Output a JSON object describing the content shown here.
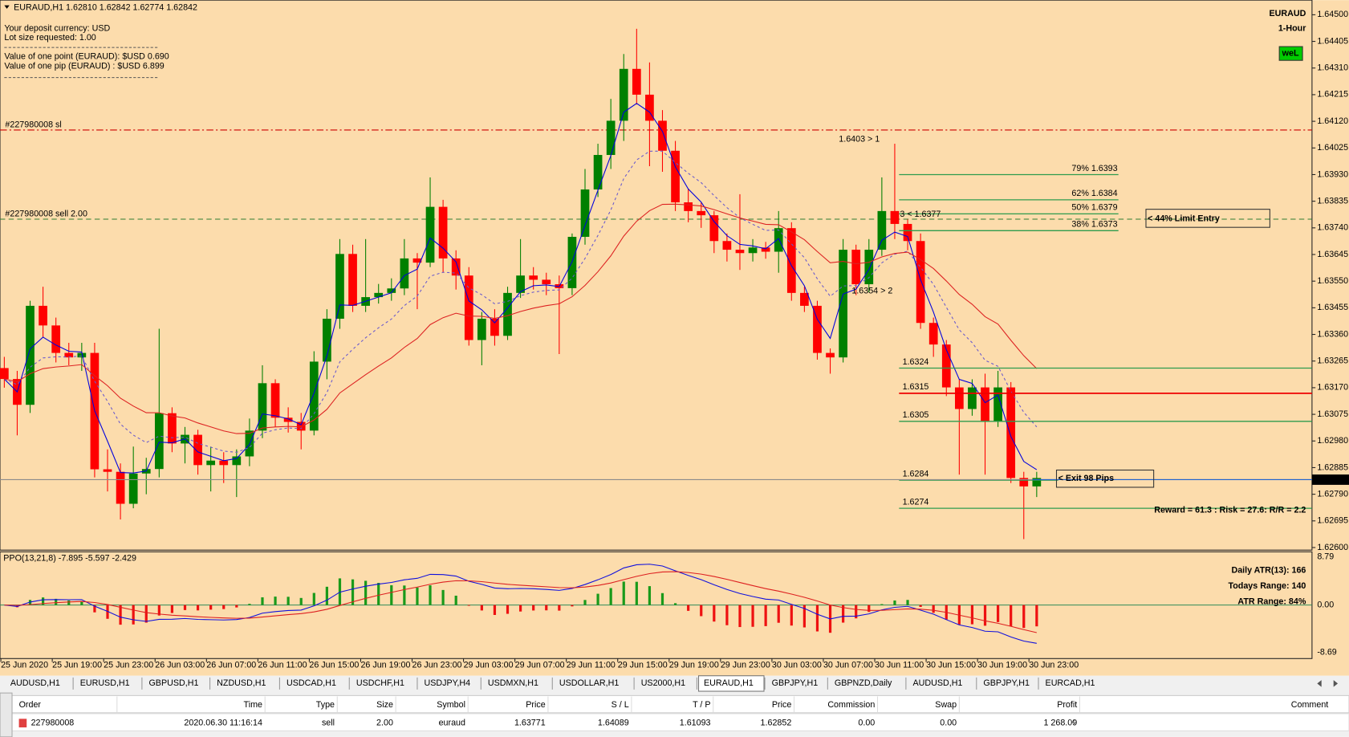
{
  "header": {
    "quote": "EURAUD,H1  1.62810 1.62842 1.62774 1.62842",
    "symbol": "EURAUD",
    "timeframe": "1-Hour",
    "badge": "weL"
  },
  "info": [
    "Your deposit currency: USD",
    "Lot size requested: 1.00",
    "Value of one point (EURAUD):  $USD 0.690",
    "Value of one pip    (EURAUD) : $USD 6.899"
  ],
  "chart_data": {
    "type": "candlestick",
    "open": [
      1.6324,
      1.63201,
      1.63109,
      1.63462,
      1.63392,
      1.63294,
      1.63278,
      1.63294,
      1.62879,
      1.6287,
      1.62756,
      1.62864,
      1.6288,
      1.63079,
      1.62971,
      1.63002,
      1.62894,
      1.6291,
      1.62894,
      1.62925,
      1.63017,
      1.63186,
      1.63063,
      1.63048,
      1.63017,
      1.63263,
      1.63416,
      1.63647,
      1.63462,
      1.63493,
      1.63508,
      1.63524,
      1.63631,
      1.63616,
      1.63815,
      1.63631,
      1.6357,
      1.6334,
      1.63416,
      1.63355,
      1.63508,
      1.6357,
      1.63555,
      1.63539,
      1.63525,
      1.63708,
      1.63877,
      1.64,
      1.64122,
      1.64307,
      1.64215,
      1.64122,
      1.64015,
      1.63831,
      1.638,
      1.63785,
      1.63693,
      1.63662,
      1.6365,
      1.6367,
      1.63655,
      1.63739,
      1.63508,
      1.63462,
      1.63294,
      1.63278,
      1.63662,
      1.63539,
      1.63662,
      1.638,
      1.63754,
      1.63693,
      1.63401,
      1.63324,
      1.63171,
      1.63094,
      1.63171,
      1.63048,
      1.63171,
      1.62848,
      1.62818
    ],
    "high": [
      1.6328,
      1.6323,
      1.6348,
      1.6353,
      1.6342,
      1.6333,
      1.6333,
      1.6333,
      1.6295,
      1.629,
      1.6296,
      1.6292,
      1.6338,
      1.631,
      1.6303,
      1.6302,
      1.6296,
      1.6294,
      1.6295,
      1.6306,
      1.6325,
      1.632,
      1.631,
      1.6308,
      1.633,
      1.6345,
      1.637,
      1.6368,
      1.637,
      1.6354,
      1.6356,
      1.637,
      1.6365,
      1.6392,
      1.6384,
      1.6366,
      1.636,
      1.6344,
      1.6345,
      1.6353,
      1.637,
      1.636,
      1.6358,
      1.6357,
      1.6372,
      1.6395,
      1.6404,
      1.642,
      1.6436,
      1.6445,
      1.6433,
      1.6416,
      1.6405,
      1.6388,
      1.6383,
      1.638,
      1.6372,
      1.6386,
      1.637,
      1.6369,
      1.638,
      1.6376,
      1.6353,
      1.6348,
      1.6331,
      1.637,
      1.6368,
      1.637,
      1.6392,
      1.6404,
      1.6377,
      1.6372,
      1.6342,
      1.6334,
      1.632,
      1.632,
      1.6322,
      1.6323,
      1.6319,
      1.6287,
      1.6287
    ],
    "low": [
      1.6317,
      1.63,
      1.6308,
      1.6335,
      1.6326,
      1.6325,
      1.6323,
      1.6285,
      1.628,
      1.627,
      1.6274,
      1.6279,
      1.6285,
      1.6294,
      1.629,
      1.6286,
      1.628,
      1.6283,
      1.6278,
      1.6289,
      1.6299,
      1.6303,
      1.6301,
      1.6295,
      1.63,
      1.632,
      1.6338,
      1.6344,
      1.6344,
      1.6347,
      1.6348,
      1.635,
      1.6345,
      1.636,
      1.6358,
      1.6352,
      1.6332,
      1.6325,
      1.6332,
      1.6334,
      1.6349,
      1.6352,
      1.635,
      1.6329,
      1.635,
      1.6368,
      1.6385,
      1.6395,
      1.6405,
      1.6418,
      1.6396,
      1.6394,
      1.638,
      1.6376,
      1.6374,
      1.6365,
      1.6362,
      1.6359,
      1.6362,
      1.6363,
      1.6358,
      1.6348,
      1.6344,
      1.6327,
      1.6322,
      1.6326,
      1.635,
      1.6351,
      1.6364,
      1.637,
      1.6366,
      1.6338,
      1.6328,
      1.6314,
      1.6286,
      1.6307,
      1.6286,
      1.6303,
      1.6283,
      1.6263,
      1.6278
    ],
    "close": [
      1.63201,
      1.63109,
      1.63462,
      1.63392,
      1.63294,
      1.63278,
      1.63294,
      1.62879,
      1.6287,
      1.62756,
      1.62864,
      1.6288,
      1.63079,
      1.62971,
      1.63002,
      1.62894,
      1.6291,
      1.62894,
      1.62925,
      1.63017,
      1.63186,
      1.63063,
      1.63048,
      1.63017,
      1.63263,
      1.63416,
      1.63647,
      1.63462,
      1.63493,
      1.63508,
      1.63524,
      1.63631,
      1.63616,
      1.63815,
      1.63631,
      1.6357,
      1.6334,
      1.63416,
      1.63355,
      1.63508,
      1.6357,
      1.63555,
      1.63539,
      1.63525,
      1.63708,
      1.63877,
      1.64,
      1.64122,
      1.64307,
      1.64215,
      1.64122,
      1.64015,
      1.63831,
      1.638,
      1.63785,
      1.63693,
      1.63662,
      1.6365,
      1.6367,
      1.63655,
      1.63739,
      1.63508,
      1.63462,
      1.63294,
      1.63278,
      1.63662,
      1.63539,
      1.63662,
      1.638,
      1.63754,
      1.63693,
      1.63401,
      1.63324,
      1.63171,
      1.63094,
      1.63171,
      1.63048,
      1.63171,
      1.62848,
      1.62818,
      1.62848
    ],
    "up_color": "#008000",
    "down_color": "#ff0000",
    "x_labels": [
      "25 Jun 2020",
      "25 Jun 19:00",
      "25 Jun 23:00",
      "26 Jun 03:00",
      "26 Jun 07:00",
      "26 Jun 11:00",
      "26 Jun 15:00",
      "26 Jun 19:00",
      "26 Jun 23:00",
      "29 Jun 03:00",
      "29 Jun 07:00",
      "29 Jun 11:00",
      "29 Jun 15:00",
      "29 Jun 19:00",
      "29 Jun 23:00",
      "30 Jun 03:00",
      "30 Jun 07:00",
      "30 Jun 11:00",
      "30 Jun 15:00",
      "30 Jun 19:00",
      "30 Jun 23:00"
    ],
    "ylim": [
      1.626,
      1.645
    ],
    "yticks": [
      {
        "value": 1.645,
        "label": "1.64500"
      },
      1.64405,
      {
        "value": 1.6431,
        "label": "1.64310"
      },
      1.64215,
      {
        "value": 1.6412,
        "label": "1.64120"
      },
      1.64025,
      {
        "value": 1.6393,
        "label": "1.63930"
      },
      1.63835,
      {
        "value": 1.6374,
        "label": "1.63740"
      },
      1.63645,
      {
        "value": 1.6355,
        "label": "1.63550"
      },
      1.63455,
      {
        "value": 1.6336,
        "label": "1.63360"
      },
      1.63265,
      {
        "value": 1.6317,
        "label": "1.63170"
      },
      1.63075,
      {
        "value": 1.6298,
        "label": "1.62980"
      },
      1.62885,
      {
        "value": 1.6279,
        "label": "1.62790"
      },
      1.62695,
      {
        "value": 1.626,
        "label": "1.62600"
      }
    ],
    "last_price": 1.62842,
    "orders": [
      {
        "label": "#227980008 sl",
        "value": 1.64089,
        "color": "#cc0000"
      },
      {
        "label": "#227980008 sell 2.00",
        "value": 1.63771,
        "color": "#2e7d32"
      }
    ],
    "fib_levels": [
      {
        "label": "79% 1.6393",
        "value": 1.6393
      },
      {
        "label": "62% 1.6384",
        "value": 1.6384
      },
      {
        "label": "50% 1.6379",
        "value": 1.6379
      },
      {
        "label": "38% 1.6373",
        "value": 1.6373
      }
    ],
    "targets": [
      1.6324,
      1.6315,
      1.6305,
      1.6284,
      1.6274
    ],
    "annotations": [
      "1.6403 > 1",
      "3 < 1.6377",
      "1.6354 > 2"
    ],
    "limit_entry": "< 44% Limit Entry",
    "exit_label": "< Exit 98 Pips",
    "reward_risk": "Reward = 61.3 : Risk = 27.6: R/R = 2.2"
  },
  "indicator": {
    "label": "PPO(13,21,8) -7.895 -5.597 -2.429",
    "ylim": [
      -8.69,
      8.79
    ],
    "yticks": [
      8.79,
      {
        "value": 0,
        "label": "0.00"
      },
      -8.69
    ],
    "stats": [
      "Daily ATR(13): 166",
      "Todays Range: 140",
      "ATR Range: 84%"
    ]
  },
  "tabs": [
    "AUDUSD,H1",
    "EURUSD,H1",
    "GBPUSD,H1",
    "NZDUSD,H1",
    "USDCAD,H1",
    "USDCHF,H1",
    "USDJPY,H4",
    "USDMXN,H1",
    "USDOLLAR,H1",
    "US2000,H1",
    "EURAUD,H1",
    "GBPJPY,H1",
    "GBPNZD,Daily",
    "AUDUSD,H1",
    "GBPJPY,H1",
    "EURCAD,H1"
  ],
  "active_tab": 10,
  "table": {
    "columns": [
      "Order",
      "Time",
      "Type",
      "Size",
      "Symbol",
      "Price",
      "S / L",
      "T / P",
      "Price",
      "Commission",
      "Swap",
      "Profit",
      "Comment"
    ],
    "rows": [
      [
        "227980008",
        "2020.06.30 11:16:14",
        "sell",
        "2.00",
        "euraud",
        "1.63771",
        "1.64089",
        "1.61093",
        "1.62852",
        "0.00",
        "0.00",
        "1 268.09",
        ""
      ]
    ]
  }
}
